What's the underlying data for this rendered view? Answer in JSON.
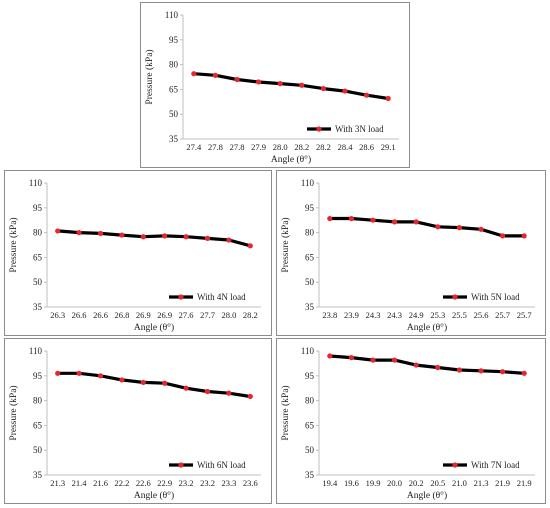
{
  "chart_data": [
    {
      "type": "line",
      "x": [
        "27.4",
        "27.8",
        "27.8",
        "27.9",
        "28.0",
        "28.2",
        "28.2",
        "28.4",
        "28.6",
        "29.1"
      ],
      "series": [
        {
          "name": "With 3N load",
          "values": [
            74.5,
            73.5,
            71,
            69.5,
            68.5,
            67.5,
            65.5,
            64,
            61.5,
            59.5
          ]
        }
      ],
      "xlabel": "Angle (θ°)",
      "ylabel": "Pressure (kPa)",
      "yticks": [
        35,
        50,
        65,
        80,
        95,
        110
      ],
      "ylim": [
        35,
        110
      ],
      "grid": false,
      "legend": "bottom-right"
    },
    {
      "type": "line",
      "x": [
        "26.3",
        "26.6",
        "26.6",
        "26.8",
        "26.9",
        "26.9",
        "27.6",
        "27.7",
        "28.0",
        "28.2"
      ],
      "series": [
        {
          "name": "With 4N load",
          "values": [
            81,
            80,
            79.5,
            78.5,
            77.5,
            78,
            77.5,
            76.5,
            75.5,
            72
          ]
        }
      ],
      "xlabel": "Angle (θ°)",
      "ylabel": "Pressure (kPa)",
      "yticks": [
        35,
        50,
        65,
        80,
        95,
        110
      ],
      "ylim": [
        35,
        110
      ],
      "grid": false,
      "legend": "bottom-right"
    },
    {
      "type": "line",
      "x": [
        "23.8",
        "23.9",
        "24.3",
        "24.3",
        "24.9",
        "25.3",
        "25.5",
        "25.6",
        "25.7",
        "25.7"
      ],
      "series": [
        {
          "name": "With 5N load",
          "values": [
            88.5,
            88.5,
            87.5,
            86.5,
            86.5,
            83.5,
            83,
            82,
            78,
            78
          ]
        }
      ],
      "xlabel": "Angle (θ°)",
      "ylabel": "Pressure (kPa)",
      "yticks": [
        35,
        50,
        65,
        80,
        95,
        110
      ],
      "ylim": [
        35,
        110
      ],
      "grid": false,
      "legend": "bottom-right"
    },
    {
      "type": "line",
      "x": [
        "21.3",
        "21.4",
        "21.6",
        "22.2",
        "22.6",
        "22.9",
        "23.2",
        "23.2",
        "23.3",
        "23.6"
      ],
      "series": [
        {
          "name": "With 6N load",
          "values": [
            96.5,
            96.5,
            95,
            92.5,
            91,
            90.5,
            87.5,
            85.5,
            84.5,
            82.5
          ]
        }
      ],
      "xlabel": "Angle (θ°)",
      "ylabel": "Pressure (kPa)",
      "yticks": [
        35,
        50,
        65,
        80,
        95,
        110
      ],
      "ylim": [
        35,
        110
      ],
      "grid": false,
      "legend": "bottom-right"
    },
    {
      "type": "line",
      "x": [
        "19.4",
        "19.6",
        "19.9",
        "20.0",
        "20.2",
        "20.5",
        "21.0",
        "21.3",
        "21.9",
        "21.9"
      ],
      "series": [
        {
          "name": "With 7N load",
          "values": [
            107,
            106,
            104.5,
            104.5,
            101.5,
            100,
            98.5,
            98,
            97.5,
            96.5
          ]
        }
      ],
      "xlabel": "Angle (θ°)",
      "ylabel": "Pressure (kPa)",
      "yticks": [
        35,
        50,
        65,
        80,
        95,
        110
      ],
      "ylim": [
        35,
        110
      ],
      "grid": false,
      "legend": "bottom-right"
    }
  ],
  "colors": {
    "line": "#000000",
    "marker": "#e8262b",
    "axis": "#bfbfbf",
    "border": "#8c8c8c"
  }
}
